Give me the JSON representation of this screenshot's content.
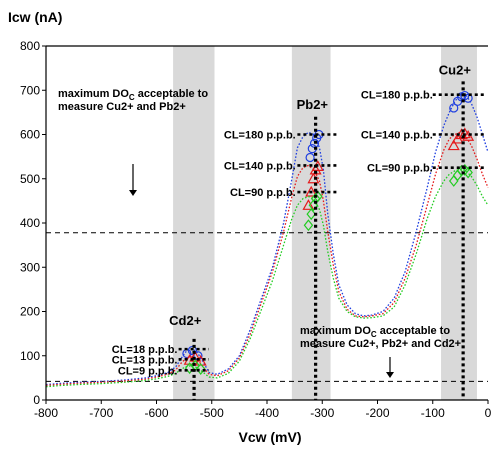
{
  "chart_data": {
    "type": "line",
    "title": "",
    "ylabel": "Icw (nA)",
    "xlabel": "Vcw (mV)",
    "xlim": [
      -800,
      0
    ],
    "ylim": [
      0,
      800
    ],
    "x_ticks": [
      -800,
      -700,
      -600,
      -500,
      -400,
      -300,
      -200,
      -100,
      0
    ],
    "y_ticks": [
      0,
      100,
      200,
      300,
      400,
      500,
      600,
      700,
      800
    ],
    "grid": false,
    "colors": {
      "cl180": "#1f3fe0",
      "cl140": "#e41a1c",
      "cl90": "#22cc22"
    },
    "shaded_regions": [
      {
        "peak": "Cd2+",
        "x_range": [
          -570,
          -495
        ]
      },
      {
        "peak": "Pb2+",
        "x_range": [
          -355,
          -285
        ]
      },
      {
        "peak": "Cu2+",
        "x_range": [
          -85,
          -20
        ]
      }
    ],
    "peak_labels": [
      {
        "text": "Cd2+",
        "x": -548,
        "y": 170
      },
      {
        "text": "Pb2+",
        "x": -318,
        "y": 658
      },
      {
        "text": "Cu2+",
        "x": -60,
        "y": 736
      }
    ],
    "cl_levels": {
      "Cd": [
        {
          "label": "CL=18 p.p.b.",
          "y": 115
        },
        {
          "label": "CL=13 p.p.b.",
          "y": 92
        },
        {
          "label": "CL=9 p.p.b.",
          "y": 67
        }
      ],
      "Pb": [
        {
          "label": "CL=180 p.p.b.",
          "y": 600
        },
        {
          "label": "CL=140 p.p.b.",
          "y": 530
        },
        {
          "label": "CL=90 p.p.b.",
          "y": 470
        }
      ],
      "Cu": [
        {
          "label": "CL=180 p.p.b.",
          "y": 690
        },
        {
          "label": "CL=140 p.p.b.",
          "y": 600
        },
        {
          "label": "CL=90 p.p.b.",
          "y": 525
        }
      ]
    },
    "thresholds": [
      {
        "y": 378,
        "note_line1": "maximum DO",
        "note_sub": "C",
        "note_rest": "  acceptable to",
        "note_line2": "measure Cu2+ and Pb2+"
      },
      {
        "y": 42,
        "note_line1": "maximum DO",
        "note_sub": "C",
        "note_rest": "  acceptable to",
        "note_line2": "measure Cu2+, Pb2+ and Cd2+"
      }
    ],
    "series": [
      {
        "color": "#1f3fe0",
        "x": [
          -800,
          -770,
          -740,
          -700,
          -660,
          -620,
          -600,
          -580,
          -565,
          -555,
          -545,
          -535,
          -525,
          -515,
          -505,
          -490,
          -470,
          -450,
          -430,
          -410,
          -390,
          -370,
          -355,
          -345,
          -335,
          -325,
          -315,
          -305,
          -298,
          -290,
          -280,
          -270,
          -255,
          -240,
          -225,
          -210,
          -190,
          -170,
          -150,
          -130,
          -110,
          -95,
          -80,
          -70,
          -60,
          -50,
          -40,
          -30,
          -20,
          -10,
          0
        ],
        "y": [
          35,
          38,
          40,
          42,
          45,
          50,
          55,
          62,
          75,
          95,
          112,
          116,
          105,
          85,
          62,
          58,
          70,
          100,
          160,
          230,
          300,
          400,
          500,
          570,
          595,
          605,
          600,
          570,
          520,
          420,
          330,
          260,
          215,
          195,
          190,
          192,
          200,
          230,
          290,
          380,
          480,
          560,
          620,
          650,
          675,
          690,
          690,
          670,
          640,
          600,
          560
        ],
        "markers": [
          [
            -545,
            105
          ],
          [
            -535,
            112
          ],
          [
            -525,
            100
          ],
          [
            -322,
            548
          ],
          [
            -318,
            568
          ],
          [
            -314,
            580
          ],
          [
            -310,
            592
          ],
          [
            -306,
            600
          ],
          [
            -62,
            660
          ],
          [
            -55,
            675
          ],
          [
            -48,
            685
          ],
          [
            -42,
            688
          ],
          [
            -36,
            682
          ]
        ]
      },
      {
        "color": "#e41a1c",
        "x": [
          -800,
          -770,
          -740,
          -700,
          -660,
          -620,
          -600,
          -580,
          -565,
          -555,
          -545,
          -535,
          -525,
          -515,
          -505,
          -490,
          -470,
          -450,
          -430,
          -410,
          -390,
          -370,
          -355,
          -345,
          -335,
          -325,
          -315,
          -305,
          -298,
          -290,
          -280,
          -270,
          -255,
          -240,
          -225,
          -210,
          -190,
          -170,
          -150,
          -130,
          -110,
          -95,
          -80,
          -70,
          -60,
          -50,
          -40,
          -30,
          -20,
          -10,
          0
        ],
        "y": [
          33,
          36,
          38,
          40,
          43,
          47,
          52,
          58,
          68,
          84,
          96,
          98,
          90,
          74,
          58,
          55,
          66,
          95,
          150,
          220,
          290,
          380,
          460,
          505,
          525,
          530,
          520,
          495,
          450,
          380,
          305,
          245,
          205,
          190,
          188,
          190,
          195,
          220,
          275,
          350,
          440,
          510,
          565,
          590,
          600,
          605,
          595,
          575,
          545,
          510,
          480
        ],
        "markers": [
          [
            -540,
            90
          ],
          [
            -530,
            97
          ],
          [
            -520,
            88
          ],
          [
            -325,
            440
          ],
          [
            -320,
            470
          ],
          [
            -316,
            500
          ],
          [
            -312,
            520
          ],
          [
            -308,
            528
          ],
          [
            -62,
            575
          ],
          [
            -55,
            590
          ],
          [
            -48,
            600
          ],
          [
            -42,
            602
          ],
          [
            -36,
            596
          ]
        ]
      },
      {
        "color": "#22cc22",
        "x": [
          -800,
          -770,
          -740,
          -700,
          -660,
          -620,
          -600,
          -580,
          -565,
          -555,
          -545,
          -535,
          -525,
          -515,
          -505,
          -490,
          -470,
          -450,
          -430,
          -410,
          -390,
          -370,
          -355,
          -345,
          -335,
          -325,
          -315,
          -305,
          -298,
          -290,
          -280,
          -270,
          -255,
          -240,
          -225,
          -210,
          -190,
          -170,
          -150,
          -130,
          -110,
          -95,
          -80,
          -70,
          -60,
          -50,
          -40,
          -30,
          -20,
          -10,
          0
        ],
        "y": [
          30,
          33,
          35,
          37,
          40,
          44,
          48,
          53,
          60,
          70,
          76,
          78,
          72,
          62,
          52,
          50,
          60,
          88,
          140,
          205,
          270,
          350,
          410,
          440,
          455,
          460,
          455,
          430,
          395,
          335,
          275,
          230,
          200,
          188,
          185,
          186,
          190,
          210,
          260,
          330,
          410,
          460,
          495,
          510,
          518,
          522,
          518,
          505,
          485,
          460,
          440
        ],
        "markers": [
          [
            -540,
            72
          ],
          [
            -530,
            78
          ],
          [
            -520,
            70
          ],
          [
            -325,
            395
          ],
          [
            -320,
            420
          ],
          [
            -316,
            440
          ],
          [
            -312,
            455
          ],
          [
            -308,
            460
          ],
          [
            -62,
            495
          ],
          [
            -55,
            508
          ],
          [
            -48,
            518
          ],
          [
            -42,
            520
          ],
          [
            -36,
            514
          ]
        ]
      }
    ]
  }
}
